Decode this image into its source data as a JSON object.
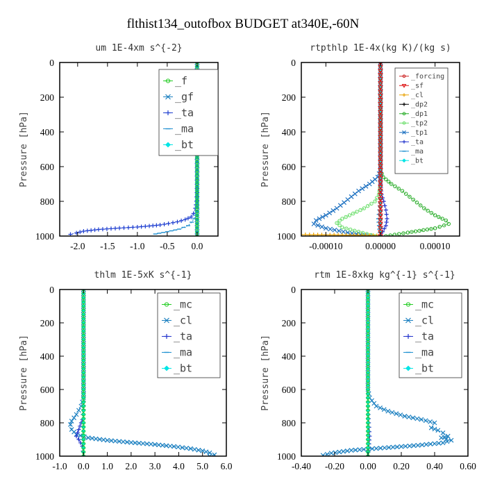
{
  "page": {
    "title": "flthist134_outofbox  BUDGET at340E,-60N"
  },
  "chart_data": [
    {
      "type": "line",
      "title": "um  1E-4xm s^{-2}",
      "ylabel": "Pressure [hPa]",
      "xlim": [
        -2.3,
        0.35
      ],
      "ylim": [
        1000,
        0
      ],
      "xticks": [
        -2.0,
        -1.5,
        -1.0,
        -0.5,
        0.0
      ],
      "xtick_labels": [
        "-2.0",
        "-1.5",
        "-1.0",
        "-0.5",
        "0.0"
      ],
      "yticks": [
        0,
        200,
        400,
        600,
        800,
        1000
      ],
      "legend": {
        "placement": "top-right",
        "entries": [
          "_f",
          "_gf",
          "_ta",
          "_ma",
          "_bt"
        ]
      },
      "series": [
        {
          "name": "_ta",
          "color": "#1f3fd0",
          "marker": "+",
          "x": [
            0,
            0,
            -0.01,
            -0.03,
            -0.06,
            -0.1,
            -0.2,
            -0.33,
            -0.48,
            -0.62,
            -0.8,
            -1.0,
            -1.3,
            -1.65,
            -1.9,
            -2.02,
            -2.12
          ],
          "y": [
            0,
            700,
            800,
            840,
            870,
            890,
            905,
            918,
            928,
            936,
            942,
            948,
            954,
            962,
            972,
            982,
            990
          ]
        },
        {
          "name": "_ma",
          "color": "#1f8fd0",
          "marker": "-",
          "x": [
            0,
            0,
            0,
            -0.02,
            -0.05,
            -0.09,
            -0.15,
            -0.3,
            -0.5,
            -0.7
          ],
          "y": [
            0,
            820,
            860,
            880,
            900,
            920,
            940,
            960,
            975,
            988
          ]
        },
        {
          "name": "_bt",
          "color": "#00e5e5",
          "marker": "diamond",
          "x": [
            0,
            0
          ],
          "y": [
            0,
            1000
          ]
        },
        {
          "name": "_gf",
          "color": "#1a7fc0",
          "marker": "x",
          "x": [
            0,
            0
          ],
          "y": [
            0,
            1000
          ]
        },
        {
          "name": "_f",
          "color": "#22cc22",
          "marker": "circle",
          "x": [
            0,
            0
          ],
          "y": [
            0,
            1000
          ]
        }
      ]
    },
    {
      "type": "line",
      "title": "rtpthlp  1E-4x(kg K)/(kg s)",
      "ylabel": "Pressure [hPa]",
      "xlim": [
        -0.000145,
        0.000145
      ],
      "ylim": [
        1000,
        0
      ],
      "xticks": [
        -0.0001,
        0,
        0.0001
      ],
      "xtick_labels": [
        "-0.00010",
        "0.00000",
        "0.00010"
      ],
      "yticks": [
        0,
        200,
        400,
        600,
        800,
        1000
      ],
      "legend": {
        "placement": "top-right",
        "entries": [
          "_forcing",
          "_sf",
          "_cl",
          "_dp2",
          "_dp1",
          "_tp2",
          "_tp1",
          "_ta",
          "_ma",
          "_bt"
        ]
      },
      "series": [
        {
          "name": "_dp1",
          "color": "#22aa22",
          "marker": "circle",
          "x": [
            0,
            0,
            5e-06,
            2e-05,
            4e-05,
            6e-05,
            8e-05,
            0.0001,
            0.00012,
            0.000125,
            0.0001,
            5e-05,
            1e-05
          ],
          "y": [
            0,
            620,
            660,
            700,
            740,
            790,
            840,
            880,
            910,
            930,
            955,
            980,
            1000
          ]
        },
        {
          "name": "_tp1",
          "color": "#1a6fc0",
          "marker": "x",
          "x": [
            0,
            0,
            -5e-06,
            -2e-05,
            -4e-05,
            -6e-05,
            -8e-05,
            -0.0001,
            -0.000118,
            -0.000122,
            -0.0001,
            -6e-05,
            -2e-05
          ],
          "y": [
            0,
            620,
            660,
            700,
            740,
            790,
            840,
            880,
            910,
            930,
            955,
            980,
            1000
          ]
        },
        {
          "name": "_tp2",
          "color": "#66dd66",
          "marker": "circle",
          "x": [
            0,
            0,
            -3e-06,
            -1e-05,
            -3e-05,
            -5e-05,
            -7e-05,
            -8e-05,
            -7e-05,
            -4e-05,
            -1e-05
          ],
          "y": [
            0,
            700,
            760,
            800,
            840,
            870,
            900,
            925,
            950,
            975,
            1000
          ]
        },
        {
          "name": "_ta",
          "color": "#2233cc",
          "marker": "+",
          "x": [
            0,
            0,
            2e-06,
            6e-06,
            1e-05,
            1.2e-05,
            1e-05,
            4e-06,
            0
          ],
          "y": [
            0,
            700,
            760,
            800,
            850,
            900,
            940,
            975,
            1000
          ]
        },
        {
          "name": "_ma",
          "color": "#1a8fd0",
          "marker": "-",
          "x": [
            0,
            0,
            -2e-06,
            -4e-06,
            -2e-06,
            0
          ],
          "y": [
            0,
            780,
            850,
            900,
            960,
            1000
          ]
        },
        {
          "name": "_cl",
          "color": "#e8a000",
          "marker": "+",
          "x": [
            -0.000145,
            -7e-05,
            -2e-05,
            0
          ],
          "y": [
            992,
            994,
            996,
            998
          ]
        },
        {
          "name": "_bt",
          "color": "#00e5e5",
          "marker": "diamond",
          "x": [
            0,
            0
          ],
          "y": [
            0,
            1000
          ]
        },
        {
          "name": "_forcing",
          "color": "#cc2222",
          "marker": "circle",
          "x": [
            0,
            0
          ],
          "y": [
            0,
            1000
          ]
        },
        {
          "name": "_sf",
          "color": "#dd1111",
          "marker": "triangle",
          "x": [
            0,
            0
          ],
          "y": [
            0,
            1000
          ]
        }
      ]
    },
    {
      "type": "line",
      "title": "thlm  1E-5xK s^{-1}",
      "ylabel": "Pressure [hPa]",
      "xlim": [
        -1.0,
        6.0
      ],
      "ylim": [
        1000,
        0
      ],
      "xticks": [
        -1.0,
        0.0,
        1.0,
        2.0,
        3.0,
        4.0,
        5.0,
        6.0
      ],
      "xtick_labels": [
        "-1.0",
        "0.0",
        "1.0",
        "2.0",
        "3.0",
        "4.0",
        "5.0",
        "6.0"
      ],
      "yticks": [
        0,
        200,
        400,
        600,
        800,
        1000
      ],
      "legend": {
        "placement": "top-right",
        "entries": [
          "_mc",
          "_cl",
          "_ta",
          "_ma",
          "_bt"
        ]
      },
      "series": [
        {
          "name": "_cl",
          "color": "#1a7fc0",
          "marker": "x",
          "x": [
            0,
            0,
            -0.1,
            -0.3,
            -0.5,
            -0.55,
            -0.5,
            -0.3,
            0.2,
            1.0,
            2.0,
            3.0,
            3.8,
            4.5,
            5.0,
            5.3,
            5.5,
            5.3
          ],
          "y": [
            0,
            650,
            700,
            750,
            790,
            810,
            840,
            870,
            890,
            905,
            918,
            930,
            942,
            955,
            968,
            980,
            992,
            1000
          ]
        },
        {
          "name": "_ta",
          "color": "#2233cc",
          "marker": "+",
          "x": [
            0,
            0,
            -0.05,
            -0.15,
            -0.25,
            -0.3,
            -0.2,
            -0.05,
            0
          ],
          "y": [
            0,
            720,
            780,
            820,
            860,
            880,
            900,
            940,
            1000
          ]
        },
        {
          "name": "_ma",
          "color": "#1a8fd0",
          "marker": "-",
          "x": [
            0,
            0,
            -0.02,
            0
          ],
          "y": [
            0,
            800,
            900,
            1000
          ]
        },
        {
          "name": "_bt",
          "color": "#00e5e5",
          "marker": "diamond",
          "x": [
            0,
            0
          ],
          "y": [
            0,
            1000
          ]
        },
        {
          "name": "_mc",
          "color": "#22cc22",
          "marker": "circle",
          "x": [
            0,
            0
          ],
          "y": [
            0,
            1000
          ]
        }
      ]
    },
    {
      "type": "line",
      "title": "rtm  1E-8xkg kg^{-1} s^{-1}",
      "ylabel": "Pressure [hPa]",
      "xlim": [
        -0.4,
        0.6
      ],
      "ylim": [
        1000,
        0
      ],
      "xticks": [
        -0.4,
        -0.2,
        0.0,
        0.2,
        0.4,
        0.6
      ],
      "xtick_labels": [
        "-0.40",
        "-0.20",
        "0.00",
        "0.20",
        "0.40",
        "0.60"
      ],
      "yticks": [
        0,
        200,
        400,
        600,
        800,
        1000
      ],
      "legend": {
        "placement": "top-right",
        "entries": [
          "_mc",
          "_cl",
          "_ta",
          "_ma",
          "_bt"
        ]
      },
      "series": [
        {
          "name": "_cl",
          "color": "#1a7fc0",
          "marker": "x",
          "x": [
            0,
            0,
            0.01,
            0.05,
            0.12,
            0.22,
            0.32,
            0.4,
            0.38,
            0.42,
            0.45,
            0.48,
            0.44,
            0.5,
            0.45,
            0.3,
            0.1,
            -0.1,
            -0.22,
            -0.27
          ],
          "y": [
            0,
            600,
            650,
            700,
            730,
            760,
            780,
            800,
            830,
            845,
            860,
            880,
            890,
            905,
            920,
            935,
            950,
            965,
            982,
            995
          ]
        },
        {
          "name": "_ta",
          "color": "#2233cc",
          "marker": "+",
          "x": [
            0,
            0,
            0.005,
            0.01,
            0.005,
            0
          ],
          "y": [
            0,
            700,
            800,
            880,
            950,
            1000
          ]
        },
        {
          "name": "_ma",
          "color": "#1a8fd0",
          "marker": "-",
          "x": [
            0,
            0,
            0.003,
            0
          ],
          "y": [
            0,
            800,
            900,
            1000
          ]
        },
        {
          "name": "_bt",
          "color": "#00e5e5",
          "marker": "diamond",
          "x": [
            0,
            0
          ],
          "y": [
            0,
            1000
          ]
        },
        {
          "name": "_mc",
          "color": "#22cc22",
          "marker": "circle",
          "x": [
            0,
            0
          ],
          "y": [
            0,
            1000
          ]
        }
      ]
    }
  ]
}
